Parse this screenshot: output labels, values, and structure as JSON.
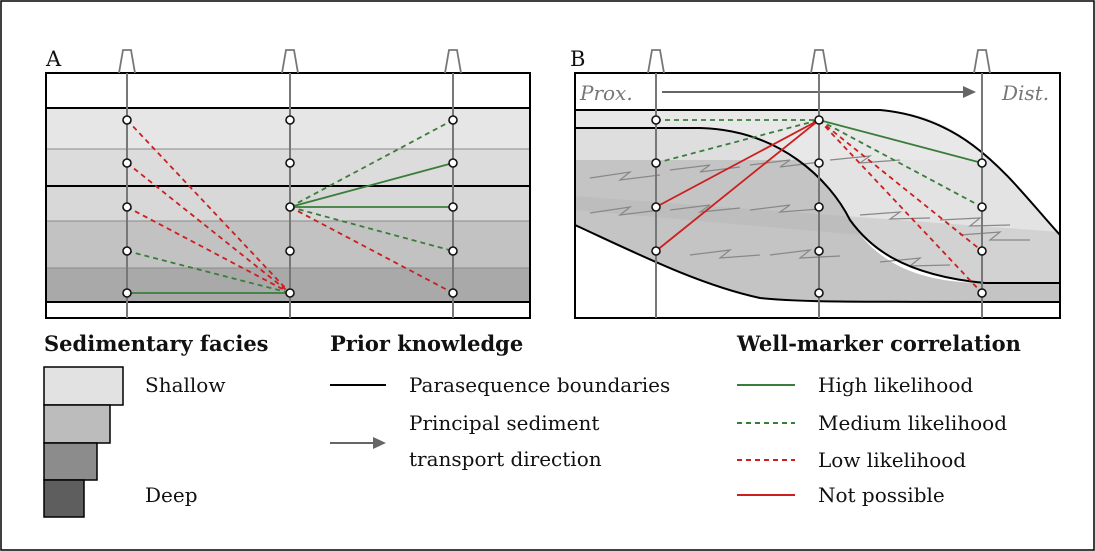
{
  "panels": {
    "a_label": "A",
    "b_label": "B"
  },
  "panel_b": {
    "proximal_label": "Prox.",
    "distal_label": "Dist."
  },
  "legend": {
    "facies_title": "Sedimentary facies",
    "facies_shallow": "Shallow",
    "facies_deep": "Deep",
    "facies_colors": [
      "#e2e2e2",
      "#bcbcbc",
      "#8c8c8c",
      "#5e5e5e"
    ],
    "prior_title": "Prior knowledge",
    "prior_boundaries": "Parasequence boundaries",
    "prior_transport_line1": "Principal sediment",
    "prior_transport_line2": "transport direction",
    "corr_title": "Well-marker correlation",
    "corr_high": "High likelihood",
    "corr_medium": "Medium likelihood",
    "corr_low": "Low likelihood",
    "corr_impossible": "Not possible"
  },
  "colors": {
    "high_likelihood": "#3a7d3a",
    "medium_likelihood": "#3a7d3a",
    "low_likelihood": "#cc1f1f",
    "not_possible": "#cc1f1f",
    "boundary": "#000000",
    "well": "#777777"
  },
  "icons": {
    "well_head": "derrick-icon",
    "marker": "circle-marker-icon"
  }
}
